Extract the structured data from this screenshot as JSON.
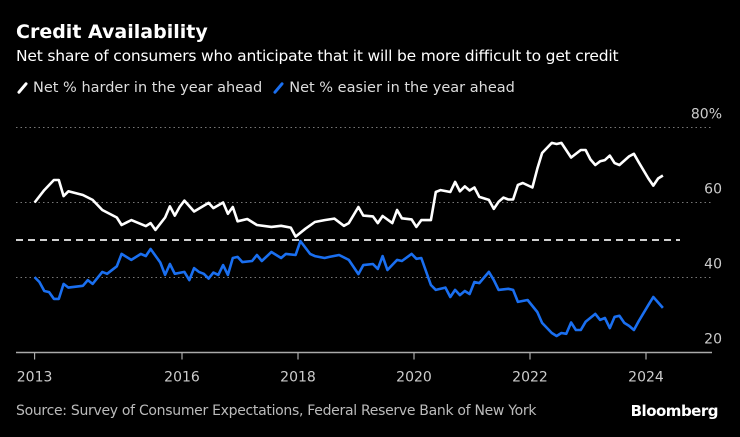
{
  "header": {
    "title": "Credit Availability",
    "subtitle": "Net share of consumers who anticipate that it will be more difficult to get credit"
  },
  "footer": {
    "source": "Source: Survey of Consumer Expectations, Federal Reserve Bank of New York",
    "brand": "Bloomberg"
  },
  "colors": {
    "background": "#000000",
    "harder": "#ffffff",
    "easier": "#1a6ff0",
    "grid": "#666666"
  },
  "chart_data": {
    "type": "line",
    "title": "Credit Availability",
    "subtitle": "Net share of consumers who anticipate that it will be more difficult to get credit",
    "xlabel": "",
    "ylabel": "",
    "x_ticks": [
      "2013",
      "2016",
      "2018",
      "2020",
      "2022",
      "2024"
    ],
    "y_ticks": [
      "20",
      "40",
      "60",
      "80%"
    ],
    "y_tick_values": [
      20,
      40,
      60,
      80
    ],
    "ylim": [
      20,
      80
    ],
    "xlim": [
      "2013-06",
      "2024-04"
    ],
    "grid": "horizontal dotted",
    "reference_line": {
      "value": 50,
      "style": "dashed"
    },
    "legend_position": "top-left",
    "series": [
      {
        "name": "Net % harder in the year ahead",
        "color": "#ffffff",
        "points": [
          [
            "2013-06",
            60
          ],
          [
            "2013-08",
            63.3
          ],
          [
            "2013-10",
            66
          ],
          [
            "2013-11",
            66
          ],
          [
            "2013-12",
            61.7
          ],
          [
            "2014-01",
            63
          ],
          [
            "2014-04",
            62
          ],
          [
            "2014-06",
            60.7
          ],
          [
            "2014-08",
            58
          ],
          [
            "2014-11",
            56
          ],
          [
            "2014-12",
            54
          ],
          [
            "2015-02",
            55.3
          ],
          [
            "2015-05",
            53.7
          ],
          [
            "2015-06",
            54.5
          ],
          [
            "2015-07",
            52.7
          ],
          [
            "2015-09",
            56
          ],
          [
            "2015-10",
            59
          ],
          [
            "2015-11",
            56.5
          ],
          [
            "2015-12",
            58.8
          ],
          [
            "2016-01",
            60.5
          ],
          [
            "2016-03",
            57.6
          ],
          [
            "2016-06",
            59.9
          ],
          [
            "2016-07",
            58.5
          ],
          [
            "2016-09",
            60
          ],
          [
            "2016-10",
            57
          ],
          [
            "2016-11",
            58.8
          ],
          [
            "2016-12",
            55
          ],
          [
            "2017-02",
            55.6
          ],
          [
            "2017-04",
            54
          ],
          [
            "2017-07",
            53.5
          ],
          [
            "2017-09",
            53.8
          ],
          [
            "2017-11",
            53.3
          ],
          [
            "2017-12",
            50.9
          ],
          [
            "2018-02",
            53
          ],
          [
            "2018-04",
            54.8
          ],
          [
            "2018-06",
            55.3
          ],
          [
            "2018-08",
            55.7
          ],
          [
            "2018-10",
            53.8
          ],
          [
            "2018-11",
            54.5
          ],
          [
            "2019-01",
            58.8
          ],
          [
            "2019-02",
            56.5
          ],
          [
            "2019-04",
            56.3
          ],
          [
            "2019-05",
            54.5
          ],
          [
            "2019-06",
            56.4
          ],
          [
            "2019-08",
            54.5
          ],
          [
            "2019-09",
            58
          ],
          [
            "2019-10",
            55.8
          ],
          [
            "2019-12",
            55.5
          ],
          [
            "2020-01",
            53.5
          ],
          [
            "2020-02",
            55.3
          ],
          [
            "2020-04",
            55.3
          ],
          [
            "2020-05",
            62.8
          ],
          [
            "2020-06",
            63.3
          ],
          [
            "2020-08",
            62.8
          ],
          [
            "2020-09",
            65.5
          ],
          [
            "2020-10",
            63
          ],
          [
            "2020-11",
            64.3
          ],
          [
            "2020-12",
            63.2
          ],
          [
            "2021-01",
            64
          ],
          [
            "2021-02",
            61.5
          ],
          [
            "2021-04",
            60.7
          ],
          [
            "2021-05",
            58.3
          ],
          [
            "2021-06",
            60.2
          ],
          [
            "2021-07",
            61.3
          ],
          [
            "2021-08",
            60.8
          ],
          [
            "2021-09",
            60.8
          ],
          [
            "2021-10",
            64.7
          ],
          [
            "2021-11",
            65.2
          ],
          [
            "2022-01",
            64
          ],
          [
            "2022-02",
            69
          ],
          [
            "2022-03",
            73.2
          ],
          [
            "2022-05",
            75.9
          ],
          [
            "2022-06",
            75.6
          ],
          [
            "2022-07",
            75.9
          ],
          [
            "2022-09",
            72
          ],
          [
            "2022-11",
            74
          ],
          [
            "2022-12",
            74
          ],
          [
            "2023-01",
            71.5
          ],
          [
            "2023-02",
            70
          ],
          [
            "2023-03",
            71
          ],
          [
            "2023-04",
            71.3
          ],
          [
            "2023-05",
            72.5
          ],
          [
            "2023-06",
            70.5
          ],
          [
            "2023-07",
            70
          ],
          [
            "2023-09",
            72.3
          ],
          [
            "2023-10",
            73
          ],
          [
            "2023-11",
            70.7
          ],
          [
            "2024-01",
            66.4
          ],
          [
            "2024-02",
            64.5
          ],
          [
            "2024-03",
            66.4
          ],
          [
            "2024-04",
            67.2
          ]
        ]
      },
      {
        "name": "Net % easier in the year ahead",
        "color": "#1a6ff0",
        "points": [
          [
            "2013-06",
            40.1
          ],
          [
            "2013-07",
            38.8
          ],
          [
            "2013-08",
            36.4
          ],
          [
            "2013-09",
            36.1
          ],
          [
            "2013-10",
            34.3
          ],
          [
            "2013-11",
            34.3
          ],
          [
            "2013-12",
            38.3
          ],
          [
            "2014-01",
            37.3
          ],
          [
            "2014-04",
            37.8
          ],
          [
            "2014-05",
            39.3
          ],
          [
            "2014-06",
            38.3
          ],
          [
            "2014-08",
            41.5
          ],
          [
            "2014-09",
            41
          ],
          [
            "2014-11",
            43
          ],
          [
            "2014-12",
            46.3
          ],
          [
            "2015-02",
            44.7
          ],
          [
            "2015-04",
            46.3
          ],
          [
            "2015-05",
            45.7
          ],
          [
            "2015-06",
            47.6
          ],
          [
            "2015-08",
            44
          ],
          [
            "2015-09",
            40.7
          ],
          [
            "2015-10",
            43.6
          ],
          [
            "2015-11",
            41
          ],
          [
            "2016-01",
            41.5
          ],
          [
            "2016-02",
            39.3
          ],
          [
            "2016-03",
            42.5
          ],
          [
            "2016-04",
            41.5
          ],
          [
            "2016-05",
            41
          ],
          [
            "2016-06",
            39.7
          ],
          [
            "2016-07",
            41.3
          ],
          [
            "2016-08",
            40.7
          ],
          [
            "2016-09",
            43.3
          ],
          [
            "2016-10",
            40.7
          ],
          [
            "2016-11",
            45.2
          ],
          [
            "2016-12",
            45.5
          ],
          [
            "2017-01",
            44.1
          ],
          [
            "2017-03",
            44.4
          ],
          [
            "2017-04",
            46
          ],
          [
            "2017-05",
            44.4
          ],
          [
            "2017-07",
            46.8
          ],
          [
            "2017-09",
            45.2
          ],
          [
            "2017-10",
            46.3
          ],
          [
            "2017-12",
            46
          ],
          [
            "2018-01",
            49.7
          ],
          [
            "2018-03",
            46.3
          ],
          [
            "2018-04",
            45.7
          ],
          [
            "2018-06",
            45.2
          ],
          [
            "2018-07",
            45.5
          ],
          [
            "2018-09",
            46
          ],
          [
            "2018-11",
            44.7
          ],
          [
            "2019-01",
            40.9
          ],
          [
            "2019-02",
            43.3
          ],
          [
            "2019-04",
            43.6
          ],
          [
            "2019-05",
            42.3
          ],
          [
            "2019-06",
            45.7
          ],
          [
            "2019-07",
            42
          ],
          [
            "2019-09",
            44.7
          ],
          [
            "2019-10",
            44.4
          ],
          [
            "2019-12",
            46.3
          ],
          [
            "2020-01",
            45
          ],
          [
            "2020-02",
            45.2
          ],
          [
            "2020-04",
            38
          ],
          [
            "2020-05",
            36.7
          ],
          [
            "2020-07",
            37.3
          ],
          [
            "2020-08",
            34.8
          ],
          [
            "2020-09",
            36.7
          ],
          [
            "2020-10",
            35.3
          ],
          [
            "2020-11",
            36.4
          ],
          [
            "2020-12",
            35.6
          ],
          [
            "2021-01",
            38.8
          ],
          [
            "2021-02",
            38.5
          ],
          [
            "2021-04",
            41.5
          ],
          [
            "2021-05",
            39.3
          ],
          [
            "2021-06",
            36.7
          ],
          [
            "2021-08",
            37
          ],
          [
            "2021-09",
            36.7
          ],
          [
            "2021-10",
            33.5
          ],
          [
            "2021-12",
            34
          ],
          [
            "2022-02",
            30.8
          ],
          [
            "2022-03",
            27.9
          ],
          [
            "2022-05",
            25.2
          ],
          [
            "2022-06",
            24.4
          ],
          [
            "2022-07",
            25.2
          ],
          [
            "2022-08",
            25
          ],
          [
            "2022-09",
            28
          ],
          [
            "2022-10",
            26
          ],
          [
            "2022-11",
            26
          ],
          [
            "2022-12",
            28.2
          ],
          [
            "2023-02",
            30.3
          ],
          [
            "2023-03",
            28.7
          ],
          [
            "2023-04",
            29.2
          ],
          [
            "2023-05",
            26.5
          ],
          [
            "2023-06",
            29.5
          ],
          [
            "2023-07",
            29.8
          ],
          [
            "2023-08",
            27.9
          ],
          [
            "2023-09",
            27.1
          ],
          [
            "2023-10",
            26
          ],
          [
            "2023-11",
            28.4
          ],
          [
            "2024-01",
            32.7
          ],
          [
            "2024-02",
            34.8
          ],
          [
            "2024-04",
            31.9
          ]
        ]
      }
    ]
  }
}
